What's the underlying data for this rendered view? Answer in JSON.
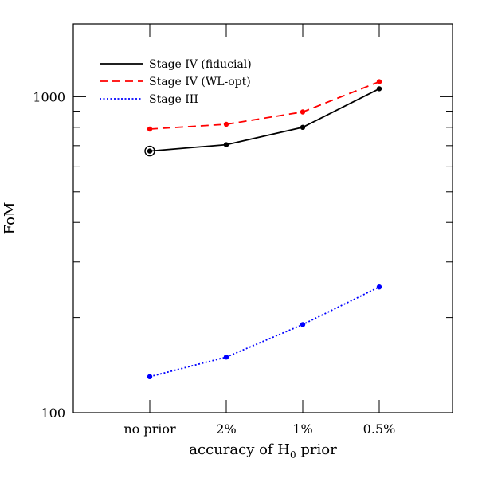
{
  "chart_data": {
    "type": "line",
    "title": "",
    "xlabel": "accuracy of H",
    "xlabel_subscript": "0",
    "xlabel_suffix": " prior",
    "ylabel": "FoM",
    "yscale": "log",
    "ylim": [
      100,
      1700
    ],
    "yticks_labeled": [
      100,
      1000
    ],
    "ytick_labels": [
      "100",
      "1000"
    ],
    "categories": [
      "no prior",
      "2%",
      "1%",
      "0.5%"
    ],
    "legend_position": "top-left",
    "grid": false,
    "series": [
      {
        "name": "Stage IV (fiducial)",
        "color": "#000000",
        "linestyle": "solid",
        "values": [
          673,
          705,
          800,
          1060
        ],
        "highlight_first": true
      },
      {
        "name": "Stage IV (WL-opt)",
        "color": "#ff0000",
        "linestyle": "dashed",
        "values": [
          790,
          818,
          895,
          1115
        ]
      },
      {
        "name": "Stage III",
        "color": "#0000ff",
        "linestyle": "dotted",
        "values": [
          130,
          150,
          190,
          250
        ]
      }
    ]
  }
}
